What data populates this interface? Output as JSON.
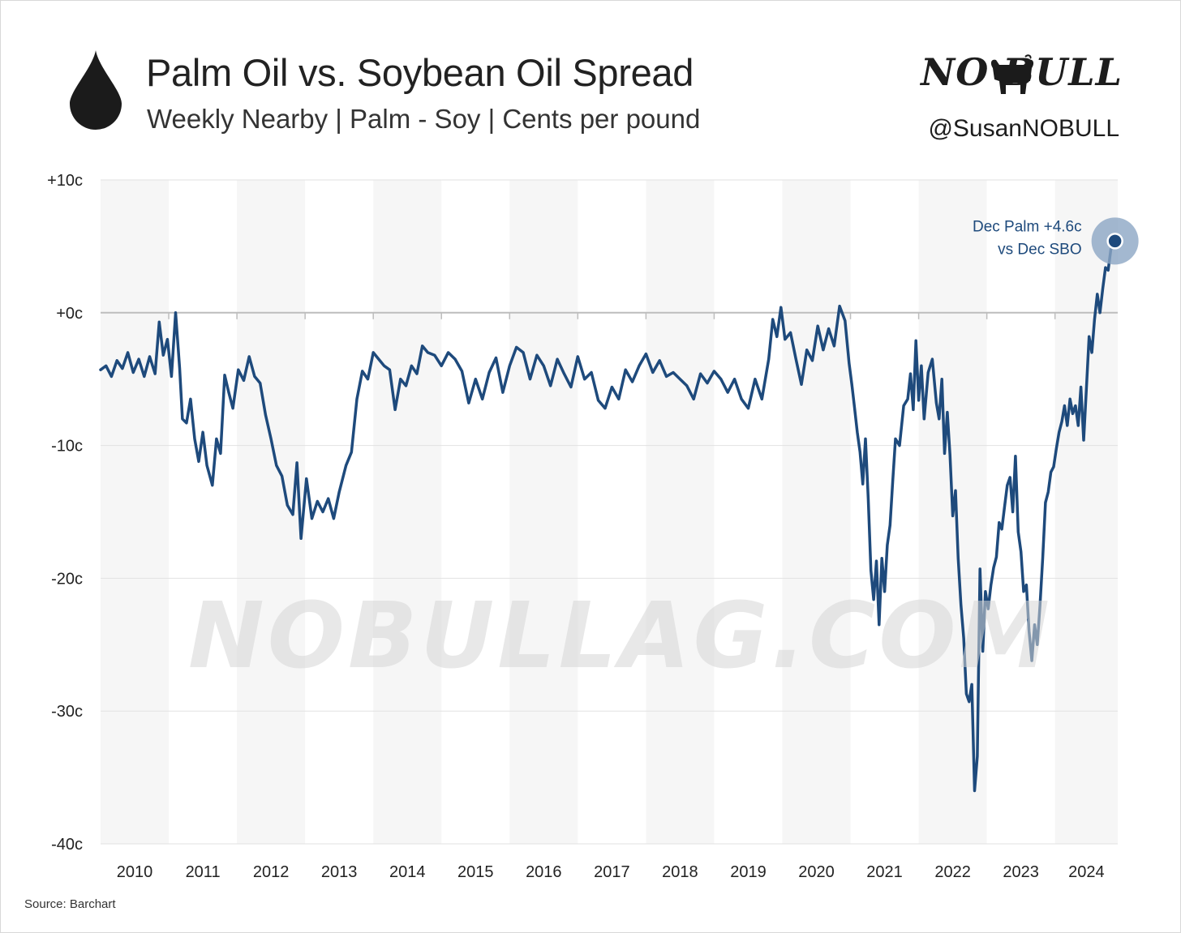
{
  "header": {
    "title": "Palm Oil vs. Soybean Oil Spread",
    "subtitle": "Weekly Nearby | Palm - Soy | Cents per pound",
    "brand": "NO BULL",
    "handle": "@SusanNOBULL"
  },
  "icons": {
    "title_icon": "oil-drop-icon",
    "brand_icon": "bull-icon"
  },
  "watermark": "NOBULLAG.COM",
  "source": "Source: Barchart",
  "colors": {
    "line": "#1e4a7c",
    "band": "#f6f6f6",
    "grid": "#e2e2e2",
    "zero_line": "#bdbdbd",
    "halo": "#8ca6c4"
  },
  "chart_data": {
    "type": "line",
    "title": "Palm Oil vs. Soybean Oil Spread",
    "subtitle": "Weekly Nearby | Palm - Soy | Cents per pound",
    "ylim": [
      -40,
      10
    ],
    "yticks": [
      10,
      0,
      -10,
      -20,
      -30,
      -40
    ],
    "ytick_labels": [
      "+10c",
      "+0c",
      "-10c",
      "-20c",
      "-30c",
      "-40c"
    ],
    "xlim": [
      2009.5,
      2024.42
    ],
    "xtick_labels": [
      "2010",
      "2011",
      "2012",
      "2013",
      "2014",
      "2015",
      "2016",
      "2017",
      "2018",
      "2019",
      "2020",
      "2021",
      "2022",
      "2023",
      "2024"
    ],
    "grid": true,
    "alternating_year_bands": true,
    "annotation": {
      "lines": [
        "Dec Palm +4.6c",
        "vs Dec SBO"
      ],
      "x": 2024.38,
      "y": 5.4
    },
    "series": [
      {
        "points": [
          [
            2009.5,
            -4.3
          ],
          [
            2009.58,
            -4.0
          ],
          [
            2009.66,
            -4.8
          ],
          [
            2009.74,
            -3.6
          ],
          [
            2009.82,
            -4.2
          ],
          [
            2009.9,
            -3.0
          ],
          [
            2009.98,
            -4.5
          ],
          [
            2010.06,
            -3.5
          ],
          [
            2010.14,
            -4.8
          ],
          [
            2010.22,
            -3.3
          ],
          [
            2010.3,
            -4.6
          ],
          [
            2010.36,
            -0.7
          ],
          [
            2010.42,
            -3.2
          ],
          [
            2010.48,
            -2.0
          ],
          [
            2010.54,
            -4.8
          ],
          [
            2010.6,
            0.0
          ],
          [
            2010.66,
            -4.2
          ],
          [
            2010.7,
            -8.0
          ],
          [
            2010.76,
            -8.3
          ],
          [
            2010.82,
            -6.5
          ],
          [
            2010.88,
            -9.5
          ],
          [
            2010.94,
            -11.2
          ],
          [
            2011.0,
            -9.0
          ],
          [
            2011.06,
            -11.5
          ],
          [
            2011.14,
            -13.0
          ],
          [
            2011.2,
            -9.5
          ],
          [
            2011.26,
            -10.6
          ],
          [
            2011.32,
            -4.7
          ],
          [
            2011.38,
            -6.0
          ],
          [
            2011.44,
            -7.2
          ],
          [
            2011.52,
            -4.3
          ],
          [
            2011.6,
            -5.1
          ],
          [
            2011.68,
            -3.3
          ],
          [
            2011.76,
            -4.8
          ],
          [
            2011.84,
            -5.3
          ],
          [
            2011.92,
            -7.7
          ],
          [
            2012.0,
            -9.5
          ],
          [
            2012.08,
            -11.5
          ],
          [
            2012.16,
            -12.3
          ],
          [
            2012.24,
            -14.5
          ],
          [
            2012.32,
            -15.2
          ],
          [
            2012.38,
            -11.3
          ],
          [
            2012.44,
            -17.0
          ],
          [
            2012.52,
            -12.5
          ],
          [
            2012.6,
            -15.5
          ],
          [
            2012.68,
            -14.2
          ],
          [
            2012.76,
            -15.0
          ],
          [
            2012.84,
            -14.0
          ],
          [
            2012.92,
            -15.5
          ],
          [
            2013.0,
            -13.5
          ],
          [
            2013.1,
            -11.5
          ],
          [
            2013.18,
            -10.5
          ],
          [
            2013.26,
            -6.5
          ],
          [
            2013.34,
            -4.4
          ],
          [
            2013.42,
            -5.0
          ],
          [
            2013.5,
            -3.0
          ],
          [
            2013.58,
            -3.5
          ],
          [
            2013.66,
            -4.0
          ],
          [
            2013.74,
            -4.3
          ],
          [
            2013.82,
            -7.3
          ],
          [
            2013.9,
            -5.0
          ],
          [
            2013.98,
            -5.5
          ],
          [
            2014.06,
            -4.0
          ],
          [
            2014.14,
            -4.6
          ],
          [
            2014.22,
            -2.5
          ],
          [
            2014.3,
            -3.0
          ],
          [
            2014.4,
            -3.2
          ],
          [
            2014.5,
            -4.0
          ],
          [
            2014.6,
            -3.0
          ],
          [
            2014.7,
            -3.5
          ],
          [
            2014.8,
            -4.4
          ],
          [
            2014.9,
            -6.8
          ],
          [
            2015.0,
            -5.0
          ],
          [
            2015.1,
            -6.5
          ],
          [
            2015.2,
            -4.5
          ],
          [
            2015.3,
            -3.4
          ],
          [
            2015.4,
            -6.0
          ],
          [
            2015.5,
            -4.0
          ],
          [
            2015.6,
            -2.6
          ],
          [
            2015.7,
            -3.0
          ],
          [
            2015.8,
            -5.0
          ],
          [
            2015.9,
            -3.2
          ],
          [
            2016.0,
            -4.0
          ],
          [
            2016.1,
            -5.5
          ],
          [
            2016.2,
            -3.5
          ],
          [
            2016.3,
            -4.6
          ],
          [
            2016.4,
            -5.6
          ],
          [
            2016.5,
            -3.3
          ],
          [
            2016.6,
            -5.0
          ],
          [
            2016.7,
            -4.5
          ],
          [
            2016.8,
            -6.6
          ],
          [
            2016.9,
            -7.2
          ],
          [
            2017.0,
            -5.6
          ],
          [
            2017.1,
            -6.5
          ],
          [
            2017.2,
            -4.3
          ],
          [
            2017.3,
            -5.2
          ],
          [
            2017.4,
            -4.0
          ],
          [
            2017.5,
            -3.1
          ],
          [
            2017.6,
            -4.5
          ],
          [
            2017.7,
            -3.6
          ],
          [
            2017.8,
            -4.8
          ],
          [
            2017.9,
            -4.5
          ],
          [
            2018.0,
            -5.0
          ],
          [
            2018.1,
            -5.5
          ],
          [
            2018.2,
            -6.5
          ],
          [
            2018.3,
            -4.6
          ],
          [
            2018.4,
            -5.3
          ],
          [
            2018.5,
            -4.4
          ],
          [
            2018.6,
            -5.0
          ],
          [
            2018.7,
            -6.0
          ],
          [
            2018.8,
            -5.0
          ],
          [
            2018.9,
            -6.5
          ],
          [
            2019.0,
            -7.2
          ],
          [
            2019.1,
            -5.0
          ],
          [
            2019.2,
            -6.5
          ],
          [
            2019.3,
            -3.5
          ],
          [
            2019.36,
            -0.5
          ],
          [
            2019.42,
            -1.8
          ],
          [
            2019.48,
            0.4
          ],
          [
            2019.54,
            -2.0
          ],
          [
            2019.62,
            -1.5
          ],
          [
            2019.7,
            -3.5
          ],
          [
            2019.78,
            -5.4
          ],
          [
            2019.86,
            -2.8
          ],
          [
            2019.94,
            -3.6
          ],
          [
            2020.02,
            -1.0
          ],
          [
            2020.1,
            -2.8
          ],
          [
            2020.18,
            -1.2
          ],
          [
            2020.26,
            -2.5
          ],
          [
            2020.34,
            0.5
          ],
          [
            2020.42,
            -0.6
          ],
          [
            2020.48,
            -3.8
          ],
          [
            2020.52,
            -5.4
          ],
          [
            2020.56,
            -7.2
          ],
          [
            2020.6,
            -9.0
          ],
          [
            2020.64,
            -10.5
          ],
          [
            2020.68,
            -12.9
          ],
          [
            2020.72,
            -9.5
          ],
          [
            2020.76,
            -14.0
          ],
          [
            2020.8,
            -19.4
          ],
          [
            2020.84,
            -21.6
          ],
          [
            2020.88,
            -18.7
          ],
          [
            2020.92,
            -23.5
          ],
          [
            2020.96,
            -18.5
          ],
          [
            2021.0,
            -21.0
          ],
          [
            2021.04,
            -17.5
          ],
          [
            2021.08,
            -16.0
          ],
          [
            2021.12,
            -12.7
          ],
          [
            2021.16,
            -9.5
          ],
          [
            2021.22,
            -10.0
          ],
          [
            2021.28,
            -7.0
          ],
          [
            2021.34,
            -6.5
          ],
          [
            2021.38,
            -4.6
          ],
          [
            2021.42,
            -7.3
          ],
          [
            2021.46,
            -2.1
          ],
          [
            2021.5,
            -6.6
          ],
          [
            2021.54,
            -4.0
          ],
          [
            2021.58,
            -8.0
          ],
          [
            2021.64,
            -4.5
          ],
          [
            2021.7,
            -3.5
          ],
          [
            2021.76,
            -6.8
          ],
          [
            2021.8,
            -8.0
          ],
          [
            2021.84,
            -5.0
          ],
          [
            2021.88,
            -10.6
          ],
          [
            2021.92,
            -7.5
          ],
          [
            2021.96,
            -10.7
          ],
          [
            2022.0,
            -15.3
          ],
          [
            2022.04,
            -13.4
          ],
          [
            2022.08,
            -18.5
          ],
          [
            2022.12,
            -22.0
          ],
          [
            2022.16,
            -24.5
          ],
          [
            2022.2,
            -28.7
          ],
          [
            2022.24,
            -29.3
          ],
          [
            2022.28,
            -28.0
          ],
          [
            2022.32,
            -36.0
          ],
          [
            2022.36,
            -33.4
          ],
          [
            2022.4,
            -19.3
          ],
          [
            2022.44,
            -25.5
          ],
          [
            2022.48,
            -21.0
          ],
          [
            2022.52,
            -22.3
          ],
          [
            2022.56,
            -20.5
          ],
          [
            2022.6,
            -19.2
          ],
          [
            2022.64,
            -18.4
          ],
          [
            2022.68,
            -15.8
          ],
          [
            2022.72,
            -16.3
          ],
          [
            2022.76,
            -14.6
          ],
          [
            2022.8,
            -13.0
          ],
          [
            2022.84,
            -12.4
          ],
          [
            2022.88,
            -15.0
          ],
          [
            2022.92,
            -10.8
          ],
          [
            2022.96,
            -16.5
          ],
          [
            2023.0,
            -18.0
          ],
          [
            2023.04,
            -21.0
          ],
          [
            2023.08,
            -20.5
          ],
          [
            2023.12,
            -24.0
          ],
          [
            2023.16,
            -26.2
          ],
          [
            2023.2,
            -23.5
          ],
          [
            2023.24,
            -25.0
          ],
          [
            2023.28,
            -22.0
          ],
          [
            2023.32,
            -18.5
          ],
          [
            2023.36,
            -14.3
          ],
          [
            2023.4,
            -13.5
          ],
          [
            2023.44,
            -12.0
          ],
          [
            2023.48,
            -11.6
          ],
          [
            2023.52,
            -10.2
          ],
          [
            2023.56,
            -9.0
          ],
          [
            2023.6,
            -8.2
          ],
          [
            2023.64,
            -7.0
          ],
          [
            2023.68,
            -8.5
          ],
          [
            2023.72,
            -6.5
          ],
          [
            2023.76,
            -7.6
          ],
          [
            2023.8,
            -7.0
          ],
          [
            2023.84,
            -8.5
          ],
          [
            2023.88,
            -5.6
          ],
          [
            2023.92,
            -9.6
          ],
          [
            2023.96,
            -5.8
          ],
          [
            2024.0,
            -1.8
          ],
          [
            2024.04,
            -3.0
          ],
          [
            2024.08,
            -0.5
          ],
          [
            2024.12,
            1.4
          ],
          [
            2024.16,
            0.0
          ],
          [
            2024.2,
            1.8
          ],
          [
            2024.24,
            3.4
          ],
          [
            2024.28,
            3.2
          ],
          [
            2024.32,
            4.8
          ],
          [
            2024.38,
            5.4
          ]
        ]
      }
    ]
  }
}
